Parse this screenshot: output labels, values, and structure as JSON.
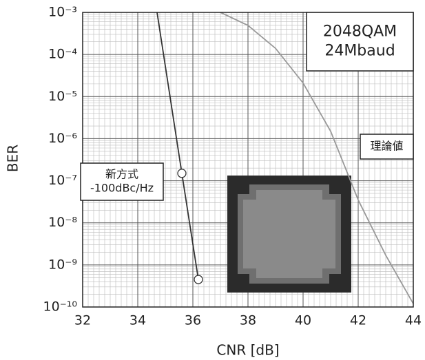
{
  "chart_data": {
    "type": "line",
    "x_label": "CNR [dB]",
    "y_label": "BER",
    "xlim": [
      32,
      44
    ],
    "xticks": [
      32,
      34,
      36,
      38,
      40,
      42,
      44
    ],
    "ylim": [
      1e-10,
      0.001
    ],
    "yticks": [
      {
        "value": 1e-10,
        "label": "10⁻¹⁰"
      },
      {
        "value": 1e-09,
        "label": "10⁻⁹"
      },
      {
        "value": 1e-08,
        "label": "10⁻⁸"
      },
      {
        "value": 1e-07,
        "label": "10⁻⁷"
      },
      {
        "value": 1e-06,
        "label": "10⁻⁶"
      },
      {
        "value": 1e-05,
        "label": "10⁻⁵"
      },
      {
        "value": 0.0001,
        "label": "10⁻⁴"
      },
      {
        "value": 0.001,
        "label": "10⁻³"
      }
    ],
    "log_y": true,
    "grid": true,
    "series": [
      {
        "color": "#333333",
        "markers": true,
        "x": [
          34.7,
          35.6,
          36.2
        ],
        "values": [
          0.001,
          1.5e-07,
          4.5e-10
        ]
      },
      {
        "color": "#999999",
        "markers": false,
        "x": [
          37,
          38,
          39,
          40,
          41,
          42,
          43,
          44
        ],
        "values": [
          0.001,
          0.00049,
          0.00014,
          2.1e-05,
          1.5e-06,
          3.5e-08,
          1.7e-09,
          1.2e-10
        ]
      }
    ],
    "annotations": [
      {
        "lines": [
          "2048QAM",
          "24Mbaud"
        ]
      },
      {
        "lines": [
          "理論値"
        ]
      },
      {
        "lines": [
          "新方式",
          "-100dBc/Hz"
        ]
      }
    ]
  }
}
